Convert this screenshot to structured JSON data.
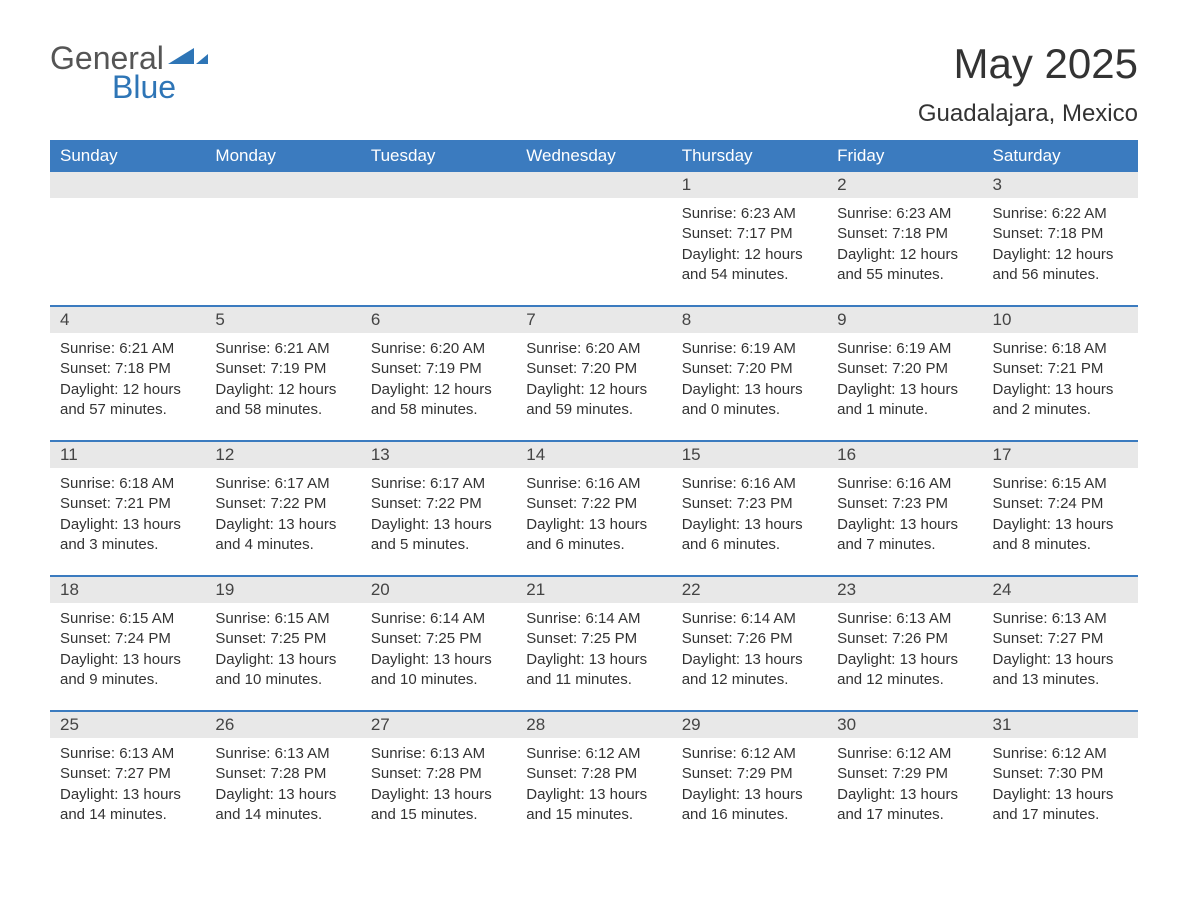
{
  "logo": {
    "text_general": "General",
    "text_blue": "Blue",
    "accent_color": "#2e75b6"
  },
  "title": {
    "month": "May 2025",
    "location": "Guadalajara, Mexico"
  },
  "colors": {
    "header_bg": "#3b7bbf",
    "header_text": "#ffffff",
    "day_bar_bg": "#e8e8e8",
    "text": "#333333",
    "border": "#3b7bbf"
  },
  "weekdays": [
    "Sunday",
    "Monday",
    "Tuesday",
    "Wednesday",
    "Thursday",
    "Friday",
    "Saturday"
  ],
  "weeks": [
    [
      {
        "day": "",
        "sunrise": "",
        "sunset": "",
        "daylight": ""
      },
      {
        "day": "",
        "sunrise": "",
        "sunset": "",
        "daylight": ""
      },
      {
        "day": "",
        "sunrise": "",
        "sunset": "",
        "daylight": ""
      },
      {
        "day": "",
        "sunrise": "",
        "sunset": "",
        "daylight": ""
      },
      {
        "day": "1",
        "sunrise": "Sunrise: 6:23 AM",
        "sunset": "Sunset: 7:17 PM",
        "daylight": "Daylight: 12 hours and 54 minutes."
      },
      {
        "day": "2",
        "sunrise": "Sunrise: 6:23 AM",
        "sunset": "Sunset: 7:18 PM",
        "daylight": "Daylight: 12 hours and 55 minutes."
      },
      {
        "day": "3",
        "sunrise": "Sunrise: 6:22 AM",
        "sunset": "Sunset: 7:18 PM",
        "daylight": "Daylight: 12 hours and 56 minutes."
      }
    ],
    [
      {
        "day": "4",
        "sunrise": "Sunrise: 6:21 AM",
        "sunset": "Sunset: 7:18 PM",
        "daylight": "Daylight: 12 hours and 57 minutes."
      },
      {
        "day": "5",
        "sunrise": "Sunrise: 6:21 AM",
        "sunset": "Sunset: 7:19 PM",
        "daylight": "Daylight: 12 hours and 58 minutes."
      },
      {
        "day": "6",
        "sunrise": "Sunrise: 6:20 AM",
        "sunset": "Sunset: 7:19 PM",
        "daylight": "Daylight: 12 hours and 58 minutes."
      },
      {
        "day": "7",
        "sunrise": "Sunrise: 6:20 AM",
        "sunset": "Sunset: 7:20 PM",
        "daylight": "Daylight: 12 hours and 59 minutes."
      },
      {
        "day": "8",
        "sunrise": "Sunrise: 6:19 AM",
        "sunset": "Sunset: 7:20 PM",
        "daylight": "Daylight: 13 hours and 0 minutes."
      },
      {
        "day": "9",
        "sunrise": "Sunrise: 6:19 AM",
        "sunset": "Sunset: 7:20 PM",
        "daylight": "Daylight: 13 hours and 1 minute."
      },
      {
        "day": "10",
        "sunrise": "Sunrise: 6:18 AM",
        "sunset": "Sunset: 7:21 PM",
        "daylight": "Daylight: 13 hours and 2 minutes."
      }
    ],
    [
      {
        "day": "11",
        "sunrise": "Sunrise: 6:18 AM",
        "sunset": "Sunset: 7:21 PM",
        "daylight": "Daylight: 13 hours and 3 minutes."
      },
      {
        "day": "12",
        "sunrise": "Sunrise: 6:17 AM",
        "sunset": "Sunset: 7:22 PM",
        "daylight": "Daylight: 13 hours and 4 minutes."
      },
      {
        "day": "13",
        "sunrise": "Sunrise: 6:17 AM",
        "sunset": "Sunset: 7:22 PM",
        "daylight": "Daylight: 13 hours and 5 minutes."
      },
      {
        "day": "14",
        "sunrise": "Sunrise: 6:16 AM",
        "sunset": "Sunset: 7:22 PM",
        "daylight": "Daylight: 13 hours and 6 minutes."
      },
      {
        "day": "15",
        "sunrise": "Sunrise: 6:16 AM",
        "sunset": "Sunset: 7:23 PM",
        "daylight": "Daylight: 13 hours and 6 minutes."
      },
      {
        "day": "16",
        "sunrise": "Sunrise: 6:16 AM",
        "sunset": "Sunset: 7:23 PM",
        "daylight": "Daylight: 13 hours and 7 minutes."
      },
      {
        "day": "17",
        "sunrise": "Sunrise: 6:15 AM",
        "sunset": "Sunset: 7:24 PM",
        "daylight": "Daylight: 13 hours and 8 minutes."
      }
    ],
    [
      {
        "day": "18",
        "sunrise": "Sunrise: 6:15 AM",
        "sunset": "Sunset: 7:24 PM",
        "daylight": "Daylight: 13 hours and 9 minutes."
      },
      {
        "day": "19",
        "sunrise": "Sunrise: 6:15 AM",
        "sunset": "Sunset: 7:25 PM",
        "daylight": "Daylight: 13 hours and 10 minutes."
      },
      {
        "day": "20",
        "sunrise": "Sunrise: 6:14 AM",
        "sunset": "Sunset: 7:25 PM",
        "daylight": "Daylight: 13 hours and 10 minutes."
      },
      {
        "day": "21",
        "sunrise": "Sunrise: 6:14 AM",
        "sunset": "Sunset: 7:25 PM",
        "daylight": "Daylight: 13 hours and 11 minutes."
      },
      {
        "day": "22",
        "sunrise": "Sunrise: 6:14 AM",
        "sunset": "Sunset: 7:26 PM",
        "daylight": "Daylight: 13 hours and 12 minutes."
      },
      {
        "day": "23",
        "sunrise": "Sunrise: 6:13 AM",
        "sunset": "Sunset: 7:26 PM",
        "daylight": "Daylight: 13 hours and 12 minutes."
      },
      {
        "day": "24",
        "sunrise": "Sunrise: 6:13 AM",
        "sunset": "Sunset: 7:27 PM",
        "daylight": "Daylight: 13 hours and 13 minutes."
      }
    ],
    [
      {
        "day": "25",
        "sunrise": "Sunrise: 6:13 AM",
        "sunset": "Sunset: 7:27 PM",
        "daylight": "Daylight: 13 hours and 14 minutes."
      },
      {
        "day": "26",
        "sunrise": "Sunrise: 6:13 AM",
        "sunset": "Sunset: 7:28 PM",
        "daylight": "Daylight: 13 hours and 14 minutes."
      },
      {
        "day": "27",
        "sunrise": "Sunrise: 6:13 AM",
        "sunset": "Sunset: 7:28 PM",
        "daylight": "Daylight: 13 hours and 15 minutes."
      },
      {
        "day": "28",
        "sunrise": "Sunrise: 6:12 AM",
        "sunset": "Sunset: 7:28 PM",
        "daylight": "Daylight: 13 hours and 15 minutes."
      },
      {
        "day": "29",
        "sunrise": "Sunrise: 6:12 AM",
        "sunset": "Sunset: 7:29 PM",
        "daylight": "Daylight: 13 hours and 16 minutes."
      },
      {
        "day": "30",
        "sunrise": "Sunrise: 6:12 AM",
        "sunset": "Sunset: 7:29 PM",
        "daylight": "Daylight: 13 hours and 17 minutes."
      },
      {
        "day": "31",
        "sunrise": "Sunrise: 6:12 AM",
        "sunset": "Sunset: 7:30 PM",
        "daylight": "Daylight: 13 hours and 17 minutes."
      }
    ]
  ]
}
